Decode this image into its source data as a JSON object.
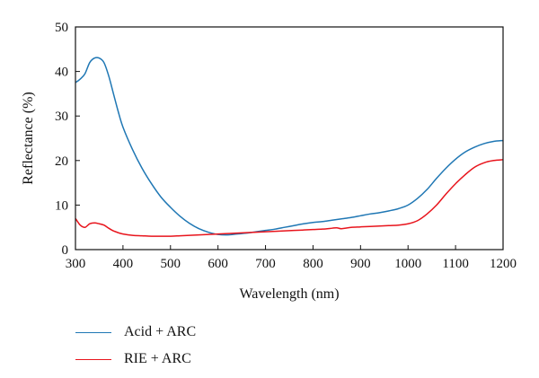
{
  "chart_data": {
    "type": "line",
    "title": "",
    "xlabel": "Wavelength (nm)",
    "ylabel": "Reflectance (%)",
    "xlim": [
      300,
      1200
    ],
    "ylim": [
      0,
      50
    ],
    "x_ticks": [
      300,
      400,
      500,
      600,
      700,
      800,
      900,
      1000,
      1100,
      1200
    ],
    "y_ticks": [
      0,
      10,
      20,
      30,
      40,
      50
    ],
    "grid": false,
    "legend_position": "bottom-left, below plot",
    "series": [
      {
        "name": "Acid + ARC",
        "color": "#1f77b4",
        "x": [
          300,
          310,
          320,
          330,
          340,
          350,
          360,
          370,
          380,
          390,
          400,
          420,
          440,
          460,
          480,
          500,
          520,
          540,
          560,
          580,
          600,
          620,
          640,
          660,
          680,
          700,
          720,
          740,
          760,
          780,
          800,
          820,
          840,
          860,
          880,
          900,
          920,
          940,
          960,
          980,
          1000,
          1020,
          1040,
          1060,
          1080,
          1100,
          1120,
          1140,
          1160,
          1180,
          1200
        ],
        "y": [
          37.5,
          38.3,
          39.5,
          42.0,
          43.0,
          43.0,
          42.0,
          39.0,
          35.0,
          31.0,
          27.5,
          22.5,
          18.3,
          14.8,
          11.8,
          9.5,
          7.5,
          5.9,
          4.7,
          3.9,
          3.4,
          3.3,
          3.5,
          3.7,
          4.0,
          4.3,
          4.6,
          5.0,
          5.4,
          5.8,
          6.1,
          6.3,
          6.6,
          6.9,
          7.2,
          7.6,
          8.0,
          8.3,
          8.7,
          9.2,
          10.0,
          11.5,
          13.5,
          16.0,
          18.3,
          20.3,
          21.9,
          23.0,
          23.8,
          24.3,
          24.5
        ]
      },
      {
        "name": "RIE + ARC",
        "color": "#e8141c",
        "x": [
          300,
          310,
          320,
          330,
          340,
          350,
          360,
          370,
          380,
          390,
          400,
          420,
          440,
          460,
          480,
          500,
          520,
          540,
          560,
          580,
          600,
          620,
          640,
          660,
          680,
          700,
          720,
          740,
          760,
          780,
          800,
          820,
          840,
          850,
          860,
          880,
          900,
          920,
          940,
          960,
          980,
          1000,
          1020,
          1040,
          1060,
          1080,
          1100,
          1120,
          1140,
          1160,
          1180,
          1200
        ],
        "y": [
          7.0,
          5.5,
          5.0,
          5.8,
          6.0,
          5.8,
          5.5,
          4.8,
          4.2,
          3.8,
          3.5,
          3.2,
          3.1,
          3.0,
          3.0,
          3.0,
          3.1,
          3.2,
          3.3,
          3.4,
          3.5,
          3.6,
          3.7,
          3.8,
          3.9,
          4.0,
          4.1,
          4.2,
          4.3,
          4.4,
          4.5,
          4.6,
          4.8,
          4.9,
          4.7,
          5.0,
          5.1,
          5.2,
          5.3,
          5.4,
          5.5,
          5.8,
          6.5,
          8.0,
          10.0,
          12.5,
          14.8,
          16.8,
          18.5,
          19.5,
          20.0,
          20.2
        ]
      }
    ]
  }
}
